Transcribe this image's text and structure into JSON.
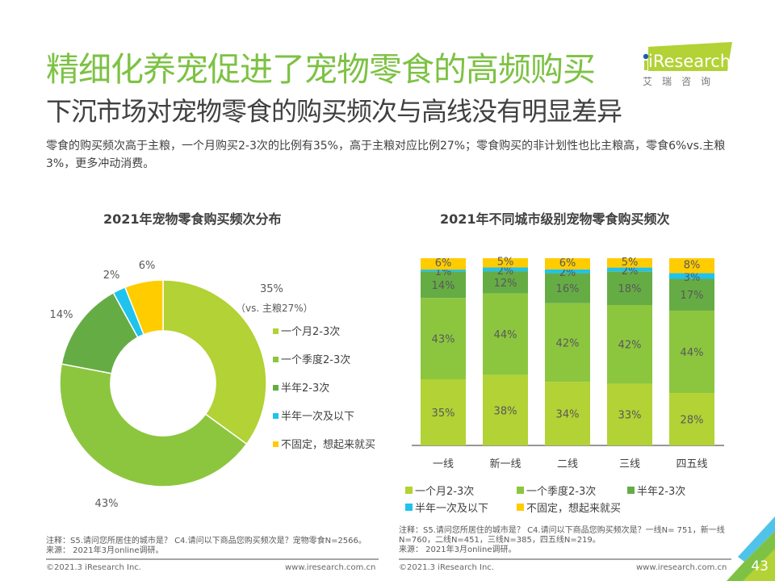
{
  "header": {
    "title": "精细化养宠促进了宠物零食的高频购买",
    "subtitle": "下沉市场对宠物零食的购买频次与高线没有明显差异",
    "description": "零食的购买频次高于主粮，一个月购买2-3次的比例有35%，高于主粮对应比例27%；零食购买的非计划性也比主粮高，零食6%vs.主粮3%，更多冲动消费。"
  },
  "logo": {
    "brand": "iResearch",
    "brand_cn": "艾瑞咨询"
  },
  "colors": {
    "title_green": "#7dc244",
    "month": "#b2d235",
    "quarter": "#8cc63f",
    "half_year": "#66ac45",
    "once_half_year": "#1fc3ed",
    "irregular": "#ffcc00"
  },
  "chart_data": [
    {
      "type": "pie",
      "title": "2021年宠物零食购买频次分布",
      "categories": [
        "一个月2-3次",
        "一个季度2-3次",
        "半年2-3次",
        "半年一次及以下",
        "不固定，想起来就买"
      ],
      "values": [
        35,
        43,
        14,
        2,
        6
      ],
      "unit": "%",
      "data_labels": [
        "35%",
        "43%",
        "14%",
        "2%",
        "6%"
      ],
      "annotation": "（vs. 主粮27%）",
      "legend_position": "right",
      "donut": true
    },
    {
      "type": "bar",
      "stacked": true,
      "title": "2021年不同城市级别宠物零食购买频次",
      "categories": [
        "一线",
        "新一线",
        "二线",
        "三线",
        "四五线"
      ],
      "series": [
        {
          "name": "一个月2-3次",
          "values": [
            35,
            38,
            34,
            33,
            28
          ]
        },
        {
          "name": "一个季度2-3次",
          "values": [
            43,
            44,
            42,
            42,
            44
          ]
        },
        {
          "name": "半年2-3次",
          "values": [
            14,
            12,
            16,
            18,
            17
          ]
        },
        {
          "name": "半年一次及以下",
          "values": [
            1,
            2,
            2,
            2,
            3
          ]
        },
        {
          "name": "不固定，想起来就买",
          "values": [
            6,
            5,
            6,
            5,
            8
          ]
        }
      ],
      "unit": "%",
      "ylim": [
        0,
        100
      ],
      "legend_position": "bottom"
    }
  ],
  "notes": {
    "left": {
      "note": "注释：S5.请问您所居住的城市是？ C4.请问以下商品您购买频次是？宠物零食N=2566。",
      "source": "来源： 2021年3月online调研。"
    },
    "right": {
      "note": "注释：S5.请问您所居住的城市是？ C4.请问以下商品您购买频次是？一线N= 751，新一线N=760，二线N=451，三线N=385，四五线N=219。",
      "source": "来源： 2021年3月online调研。"
    }
  },
  "footer": {
    "copyright": "©2021.3 iResearch Inc.",
    "website": "www.iresearch.com.cn",
    "page_number": "43"
  }
}
